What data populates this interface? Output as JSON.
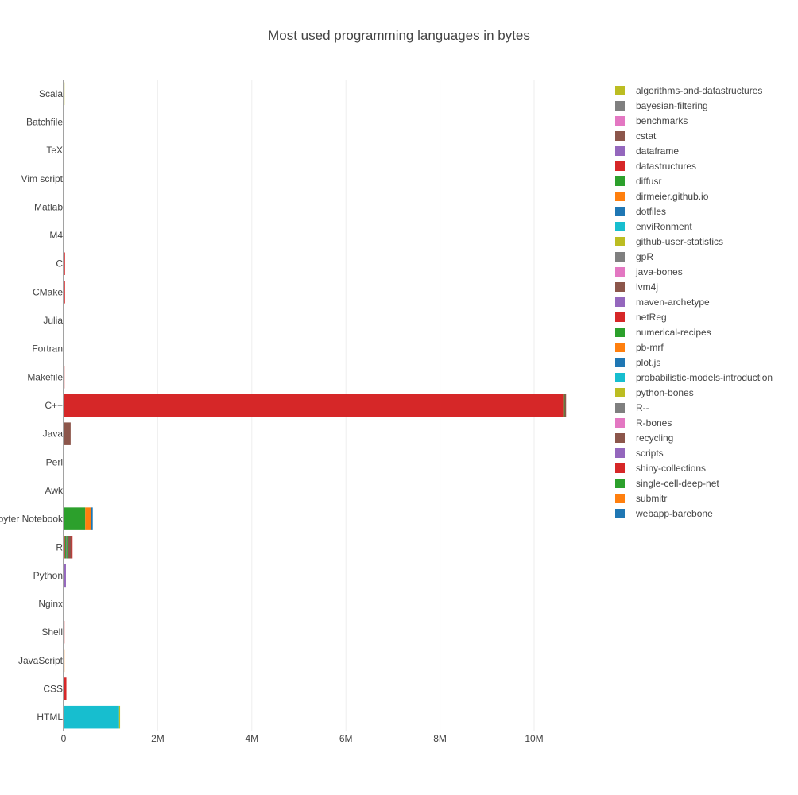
{
  "chart_data": {
    "type": "bar",
    "orientation": "horizontal",
    "barmode": "stack",
    "title": "Most used programming languages in bytes",
    "xlabel": "",
    "ylabel": "",
    "xlim": [
      0,
      10900000
    ],
    "x_ticks": [
      0,
      2000000,
      4000000,
      6000000,
      8000000,
      10000000
    ],
    "x_tick_labels": [
      "0",
      "2M",
      "4M",
      "6M",
      "8M",
      "10M"
    ],
    "grid": "vertical",
    "legend_position": "right",
    "categories": [
      "HTML",
      "CSS",
      "JavaScript",
      "Shell",
      "Nginx",
      "Python",
      "R",
      "Jupyter Notebook",
      "Awk",
      "Perl",
      "Java",
      "C++",
      "Makefile",
      "Fortran",
      "Julia",
      "CMake",
      "C",
      "M4",
      "Matlab",
      "Vim script",
      "TeX",
      "Batchfile",
      "Scala"
    ],
    "series": [
      {
        "name": "algorithms-and-datastructures",
        "color": "#bcbd22",
        "values": [
          0,
          0,
          0,
          0,
          0,
          0,
          0,
          0,
          0,
          0,
          0,
          0,
          0,
          0,
          0,
          0,
          0,
          0,
          0,
          0,
          0,
          0,
          20000
        ]
      },
      {
        "name": "bayesian-filtering",
        "color": "#7f7f7f",
        "values": [
          0,
          0,
          0,
          0,
          0,
          0,
          0,
          0,
          0,
          0,
          0,
          0,
          0,
          0,
          0,
          0,
          0,
          0,
          0,
          0,
          0,
          0,
          0
        ]
      },
      {
        "name": "benchmarks",
        "color": "#e377c2",
        "values": [
          0,
          0,
          0,
          0,
          0,
          0,
          0,
          0,
          0,
          0,
          0,
          0,
          0,
          0,
          0,
          0,
          0,
          0,
          0,
          0,
          0,
          0,
          0
        ]
      },
      {
        "name": "cstat",
        "color": "#8c564b",
        "values": [
          0,
          0,
          0,
          0,
          0,
          0,
          0,
          0,
          0,
          0,
          0,
          0,
          0,
          0,
          0,
          0,
          0,
          0,
          0,
          0,
          0,
          0,
          0
        ]
      },
      {
        "name": "dataframe",
        "color": "#9467bd",
        "values": [
          0,
          0,
          0,
          0,
          0,
          0,
          0,
          0,
          0,
          0,
          0,
          0,
          0,
          0,
          0,
          0,
          0,
          0,
          0,
          0,
          0,
          0,
          0
        ]
      },
      {
        "name": "datastructures",
        "color": "#d62728",
        "values": [
          0,
          0,
          0,
          0,
          0,
          0,
          30000,
          0,
          0,
          0,
          0,
          0,
          0,
          0,
          0,
          0,
          0,
          0,
          0,
          0,
          0,
          0,
          0
        ]
      },
      {
        "name": "diffusr",
        "color": "#2ca02c",
        "values": [
          0,
          0,
          0,
          0,
          0,
          0,
          20000,
          0,
          0,
          0,
          0,
          0,
          0,
          0,
          0,
          0,
          0,
          0,
          0,
          0,
          0,
          0,
          0
        ]
      },
      {
        "name": "dirmeier.github.io",
        "color": "#ff7f0e",
        "values": [
          0,
          0,
          20000,
          0,
          0,
          0,
          0,
          0,
          0,
          0,
          0,
          0,
          0,
          0,
          0,
          0,
          0,
          0,
          0,
          0,
          0,
          0,
          0
        ]
      },
      {
        "name": "dotfiles",
        "color": "#1f77b4",
        "values": [
          0,
          0,
          0,
          0,
          0,
          0,
          0,
          0,
          0,
          0,
          0,
          0,
          0,
          0,
          0,
          0,
          0,
          0,
          0,
          0,
          0,
          0,
          0
        ]
      },
      {
        "name": "enviRonment",
        "color": "#17becf",
        "values": [
          1180000,
          0,
          0,
          0,
          0,
          0,
          0,
          0,
          0,
          0,
          0,
          0,
          0,
          0,
          0,
          0,
          0,
          0,
          0,
          0,
          0,
          0,
          0
        ]
      },
      {
        "name": "github-user-statistics",
        "color": "#bcbd22",
        "values": [
          20000,
          0,
          0,
          0,
          0,
          0,
          0,
          0,
          0,
          0,
          0,
          0,
          0,
          0,
          0,
          0,
          0,
          0,
          0,
          0,
          0,
          0,
          0
        ]
      },
      {
        "name": "gpR",
        "color": "#7f7f7f",
        "values": [
          0,
          0,
          0,
          0,
          0,
          0,
          20000,
          0,
          0,
          0,
          0,
          0,
          0,
          0,
          0,
          0,
          0,
          0,
          0,
          0,
          0,
          0,
          0
        ]
      },
      {
        "name": "java-bones",
        "color": "#e377c2",
        "values": [
          0,
          0,
          0,
          0,
          0,
          0,
          0,
          0,
          0,
          0,
          0,
          0,
          0,
          0,
          0,
          0,
          0,
          0,
          0,
          0,
          0,
          0,
          0
        ]
      },
      {
        "name": "lvm4j",
        "color": "#8c564b",
        "values": [
          0,
          0,
          0,
          0,
          0,
          0,
          0,
          0,
          0,
          0,
          150000,
          0,
          0,
          0,
          0,
          0,
          0,
          0,
          0,
          0,
          0,
          0,
          0
        ]
      },
      {
        "name": "maven-archetype",
        "color": "#9467bd",
        "values": [
          0,
          0,
          0,
          0,
          0,
          0,
          0,
          0,
          0,
          0,
          0,
          0,
          0,
          0,
          0,
          0,
          0,
          0,
          0,
          0,
          0,
          0,
          0
        ]
      },
      {
        "name": "netReg",
        "color": "#d62728",
        "values": [
          0,
          0,
          0,
          0,
          0,
          0,
          0,
          0,
          0,
          0,
          0,
          10620000,
          0,
          0,
          0,
          30000,
          30000,
          0,
          0,
          0,
          0,
          0,
          0
        ]
      },
      {
        "name": "numerical-recipes",
        "color": "#2ca02c",
        "values": [
          0,
          0,
          0,
          0,
          0,
          0,
          30000,
          0,
          0,
          0,
          0,
          30000,
          0,
          0,
          0,
          0,
          0,
          0,
          0,
          0,
          0,
          0,
          0
        ]
      },
      {
        "name": "pb-mrf",
        "color": "#ff7f0e",
        "values": [
          0,
          0,
          0,
          0,
          0,
          0,
          0,
          0,
          0,
          0,
          0,
          0,
          0,
          0,
          0,
          0,
          0,
          0,
          0,
          0,
          0,
          0,
          0
        ]
      },
      {
        "name": "plot.js",
        "color": "#1f77b4",
        "values": [
          0,
          0,
          0,
          0,
          0,
          0,
          0,
          0,
          0,
          0,
          0,
          0,
          0,
          0,
          0,
          0,
          0,
          0,
          0,
          0,
          0,
          0,
          0
        ]
      },
      {
        "name": "probabilistic-models-introduction",
        "color": "#17becf",
        "values": [
          0,
          0,
          0,
          0,
          0,
          0,
          0,
          0,
          0,
          0,
          0,
          0,
          0,
          0,
          0,
          0,
          0,
          0,
          0,
          0,
          0,
          0,
          0
        ]
      },
      {
        "name": "python-bones",
        "color": "#bcbd22",
        "values": [
          0,
          0,
          0,
          0,
          0,
          0,
          0,
          0,
          0,
          0,
          0,
          0,
          0,
          0,
          0,
          0,
          0,
          0,
          0,
          0,
          0,
          0,
          0
        ]
      },
      {
        "name": "R--",
        "color": "#7f7f7f",
        "values": [
          0,
          0,
          0,
          0,
          0,
          0,
          0,
          0,
          0,
          0,
          0,
          0,
          0,
          0,
          0,
          0,
          0,
          0,
          0,
          0,
          0,
          0,
          0
        ]
      },
      {
        "name": "R-bones",
        "color": "#e377c2",
        "values": [
          0,
          0,
          0,
          0,
          0,
          0,
          0,
          0,
          0,
          0,
          0,
          0,
          0,
          0,
          0,
          0,
          0,
          0,
          0,
          0,
          0,
          0,
          0
        ]
      },
      {
        "name": "recycling",
        "color": "#8c564b",
        "values": [
          0,
          0,
          0,
          0,
          0,
          0,
          60000,
          0,
          0,
          0,
          0,
          30000,
          0,
          0,
          0,
          0,
          0,
          0,
          0,
          0,
          0,
          0,
          0
        ]
      },
      {
        "name": "scripts",
        "color": "#9467bd",
        "values": [
          0,
          0,
          0,
          0,
          0,
          50000,
          0,
          0,
          0,
          0,
          0,
          0,
          0,
          0,
          0,
          0,
          0,
          0,
          0,
          0,
          0,
          0,
          0
        ]
      },
      {
        "name": "shiny-collections",
        "color": "#d62728",
        "values": [
          0,
          60000,
          0,
          20000,
          0,
          0,
          30000,
          0,
          0,
          0,
          0,
          0,
          20000,
          0,
          0,
          0,
          0,
          0,
          0,
          0,
          0,
          0,
          0
        ]
      },
      {
        "name": "single-cell-deep-net",
        "color": "#2ca02c",
        "values": [
          0,
          0,
          0,
          0,
          0,
          0,
          0,
          460000,
          0,
          0,
          0,
          0,
          0,
          0,
          0,
          0,
          0,
          0,
          0,
          0,
          0,
          0,
          0
        ]
      },
      {
        "name": "submitr",
        "color": "#ff7f0e",
        "values": [
          0,
          0,
          0,
          0,
          0,
          0,
          0,
          120000,
          0,
          0,
          0,
          0,
          0,
          0,
          0,
          0,
          0,
          0,
          0,
          0,
          0,
          0,
          0
        ]
      },
      {
        "name": "webapp-barebone",
        "color": "#1f77b4",
        "values": [
          0,
          0,
          0,
          0,
          0,
          0,
          0,
          40000,
          0,
          0,
          0,
          0,
          0,
          0,
          0,
          0,
          0,
          0,
          0,
          0,
          0,
          0,
          0
        ]
      }
    ]
  }
}
